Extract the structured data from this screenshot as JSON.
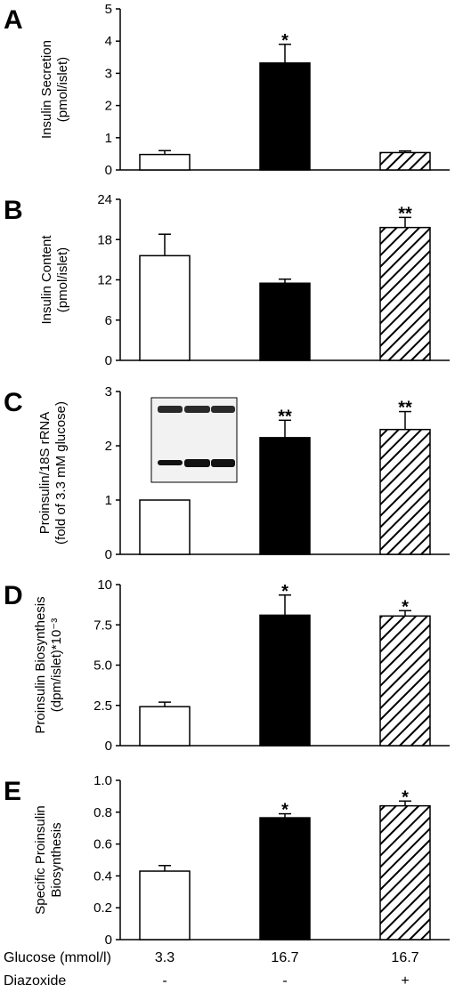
{
  "colors": {
    "white_bar": "#ffffff",
    "black_bar": "#000000",
    "hatched_bar": "hatched",
    "stroke": "#000000"
  },
  "footer": {
    "glucose_label": "Glucose (mmol/l)",
    "diazoxide_label": "Diazoxide",
    "glucose_values": [
      "3.3",
      "16.7",
      "16.7"
    ],
    "diazoxide_values": [
      "-",
      "-",
      "+"
    ]
  },
  "chart_data": [
    {
      "type": "bar",
      "panel": "A",
      "ylabel": [
        "Insulin Secretion",
        "(pmol/islet)"
      ],
      "ylim": [
        0,
        5
      ],
      "yticks": [
        0,
        1,
        2,
        3,
        4,
        5
      ],
      "ytick_labels": [
        "0",
        "1",
        "2",
        "3",
        "4",
        "5"
      ],
      "values": [
        0.48,
        3.32,
        0.54
      ],
      "errors": [
        0.12,
        0.58,
        0.05
      ],
      "annotations": [
        "",
        "*",
        ""
      ],
      "fills": [
        "white",
        "black",
        "hatched"
      ]
    },
    {
      "type": "bar",
      "panel": "B",
      "ylabel": [
        "Insulin Content",
        "(pmol/islet)"
      ],
      "ylim": [
        0,
        24
      ],
      "yticks": [
        0,
        6,
        12,
        18,
        24
      ],
      "ytick_labels": [
        "0",
        "6",
        "12",
        "18",
        "24"
      ],
      "values": [
        15.6,
        11.5,
        19.8
      ],
      "errors": [
        3.2,
        0.6,
        1.5
      ],
      "annotations": [
        "",
        "",
        "**"
      ],
      "fills": [
        "white",
        "black",
        "hatched"
      ]
    },
    {
      "type": "bar",
      "panel": "C",
      "ylabel": [
        "Proinsulin/18S rRNA",
        "(fold of 3.3 mM glucose)"
      ],
      "ylim": [
        0,
        3
      ],
      "yticks": [
        0,
        1,
        2,
        3
      ],
      "ytick_labels": [
        "0",
        "1",
        "2",
        "3"
      ],
      "values": [
        1.0,
        2.15,
        2.3
      ],
      "errors": [
        0,
        0.32,
        0.33
      ],
      "annotations": [
        "",
        "**",
        "**"
      ],
      "fills": [
        "white",
        "black",
        "hatched"
      ],
      "inset": "blot"
    },
    {
      "type": "bar",
      "panel": "D",
      "ylabel": [
        "Proinsulin Biosynthesis",
        "(dpm/islet)*10⁻³"
      ],
      "ylim": [
        0,
        10
      ],
      "yticks": [
        0,
        2.5,
        5,
        7.5,
        10
      ],
      "ytick_labels": [
        "0",
        "2.5",
        "5.0",
        "7.5",
        "10"
      ],
      "values": [
        2.42,
        8.1,
        8.05
      ],
      "errors": [
        0.28,
        1.25,
        0.33
      ],
      "annotations": [
        "",
        "*",
        "*"
      ],
      "fills": [
        "white",
        "black",
        "hatched"
      ]
    },
    {
      "type": "bar",
      "panel": "E",
      "ylabel": [
        "Specific Proinsulin",
        "Biosynthesis"
      ],
      "ylim": [
        0,
        1
      ],
      "yticks": [
        0,
        0.2,
        0.4,
        0.6,
        0.8,
        1.0
      ],
      "ytick_labels": [
        "0",
        "0.2",
        "0.4",
        "0.6",
        "0.8",
        "1.0"
      ],
      "values": [
        0.43,
        0.765,
        0.84
      ],
      "errors": [
        0.035,
        0.025,
        0.03
      ],
      "annotations": [
        "",
        "*",
        "*"
      ],
      "fills": [
        "white",
        "black",
        "hatched"
      ]
    }
  ]
}
